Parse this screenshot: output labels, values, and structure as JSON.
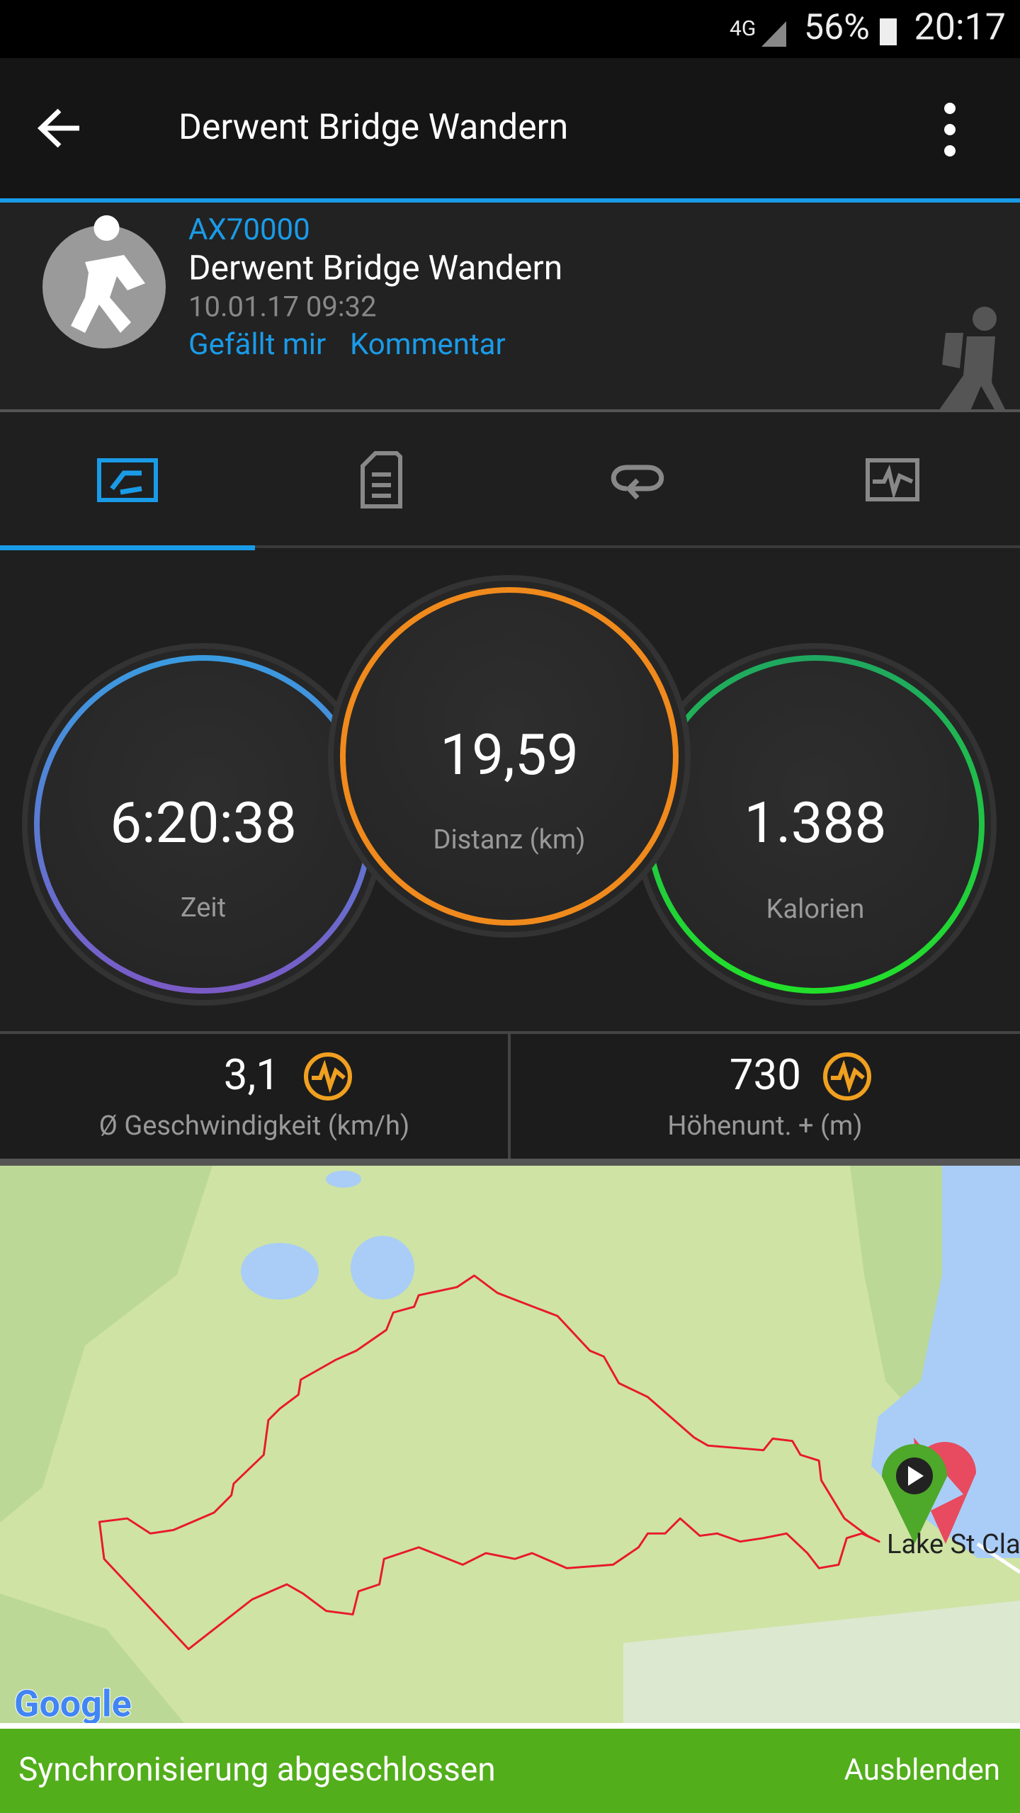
{
  "status_bar": {
    "network": "4G",
    "battery": "56%",
    "time": "20:17"
  },
  "toolbar": {
    "title": "Derwent Bridge Wandern"
  },
  "activity": {
    "user": "AX70000",
    "name": "Derwent Bridge Wandern",
    "date": "10.01.17 09:32",
    "like": "Gefällt mir",
    "comment": "Kommentar"
  },
  "stats": [
    {
      "value": "6:20:38",
      "label": "Zeit"
    },
    {
      "value": "19,59",
      "label": "Distanz (km)"
    },
    {
      "value": "1.388",
      "label": "Kalorien"
    }
  ],
  "metrics": [
    {
      "value": "3,1",
      "label": "Ø Geschwindigkeit (km/h)"
    },
    {
      "value": "730",
      "label": "Höhenunt. + (m)"
    }
  ],
  "map": {
    "place": "Lake St Cla",
    "attribution": "Google"
  },
  "snackbar": {
    "message": "Synchronisierung abgeschlossen",
    "action": "Ausblenden"
  }
}
